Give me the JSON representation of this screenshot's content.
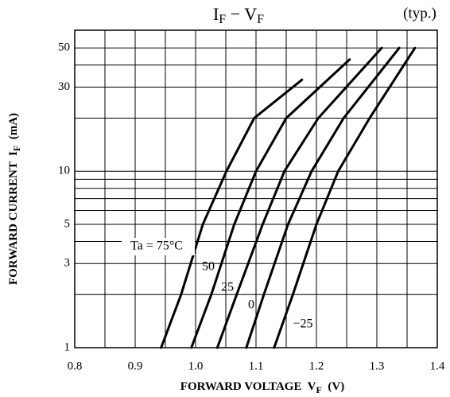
{
  "chart_data": {
    "type": "line",
    "title": [
      "I",
      "F",
      " − ",
      "V",
      "F"
    ],
    "annotation": "(typ.)",
    "x_label": [
      "FORWARD VOLTAGE  V",
      "F",
      "  (V)"
    ],
    "y_label": [
      "FORWARD CURRENT  I",
      "F",
      "  (mA)"
    ],
    "xlim": [
      0.8,
      1.4
    ],
    "xticks": [
      0.8,
      0.9,
      {
        "value": 1,
        "label": "1.0"
      },
      1.1,
      1.2,
      1.3,
      1.4
    ],
    "xminor": [
      0.85,
      0.95,
      1.05,
      1.15,
      1.25,
      1.35
    ],
    "ylim": [
      1,
      63
    ],
    "yticks": [
      1,
      3,
      5,
      10,
      30,
      50
    ],
    "yminor": [
      2,
      4,
      6,
      7,
      8,
      9,
      20,
      40
    ],
    "log_y": true,
    "grid": true,
    "series": [
      {
        "name": "Ta = 75°C",
        "color": "#000000",
        "x": [
          0.943,
          0.976,
          1.012,
          1.051,
          1.097,
          1.176
        ],
        "values": [
          1,
          2,
          5,
          10,
          20,
          33
        ]
      },
      {
        "name": "50",
        "color": "#000000",
        "x": [
          0.993,
          1.026,
          1.064,
          1.1,
          1.15,
          1.255
        ],
        "values": [
          1,
          2,
          5,
          10,
          20,
          43
        ]
      },
      {
        "name": "25",
        "color": "#000000",
        "x": [
          1.036,
          1.068,
          1.111,
          1.147,
          1.203,
          1.308
        ],
        "values": [
          1,
          2,
          5,
          10,
          20,
          50
        ]
      },
      {
        "name": "0",
        "color": "#000000",
        "x": [
          1.084,
          1.113,
          1.153,
          1.192,
          1.245,
          1.337
        ],
        "values": [
          1,
          2,
          5,
          10,
          20,
          50
        ]
      },
      {
        "name": "−25",
        "color": "#000000",
        "x": [
          1.13,
          1.161,
          1.2,
          1.236,
          1.288,
          1.363
        ],
        "values": [
          1,
          2,
          5,
          10,
          20,
          50
        ]
      }
    ]
  }
}
